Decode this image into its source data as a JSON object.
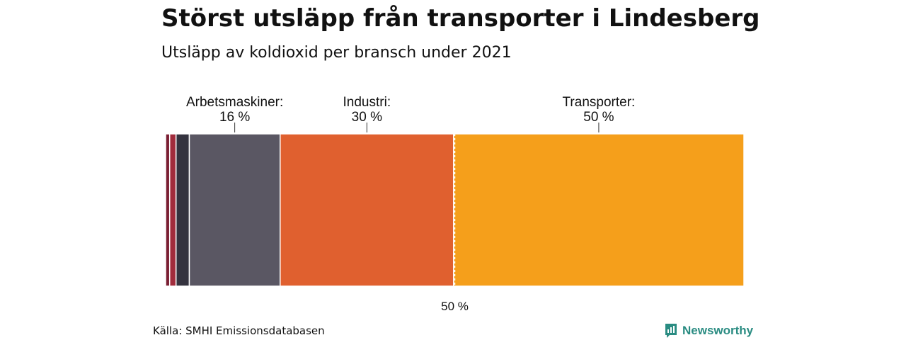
{
  "title": "Störst utsläpp från transporter i Lindesberg",
  "subtitle": "Utsläpp av koldioxid per bransch under 2021",
  "source": "Källa: SMHI Emissionsdatabasen",
  "brand": "Newsworthy",
  "chart_data": {
    "type": "bar",
    "orientation": "stacked-100",
    "total": 100,
    "segments": [
      {
        "value": 0.7,
        "color": "#7a1f33",
        "label": ""
      },
      {
        "value": 1.1,
        "color": "#a12c3c",
        "label": ""
      },
      {
        "value": 2.3,
        "color": "#34333f",
        "label": ""
      },
      {
        "value": 15.7,
        "color": "#5a5763",
        "label": "Arbetsmaskiner:",
        "value_label": "16 %"
      },
      {
        "value": 30.0,
        "color": "#e0602f",
        "label": "Industri:",
        "value_label": "30 %"
      },
      {
        "value": 50.2,
        "color": "#f59f1b",
        "label": "Transporter:",
        "value_label": "50 %"
      }
    ],
    "reference_line": {
      "value": 50,
      "label": "50 %"
    }
  }
}
